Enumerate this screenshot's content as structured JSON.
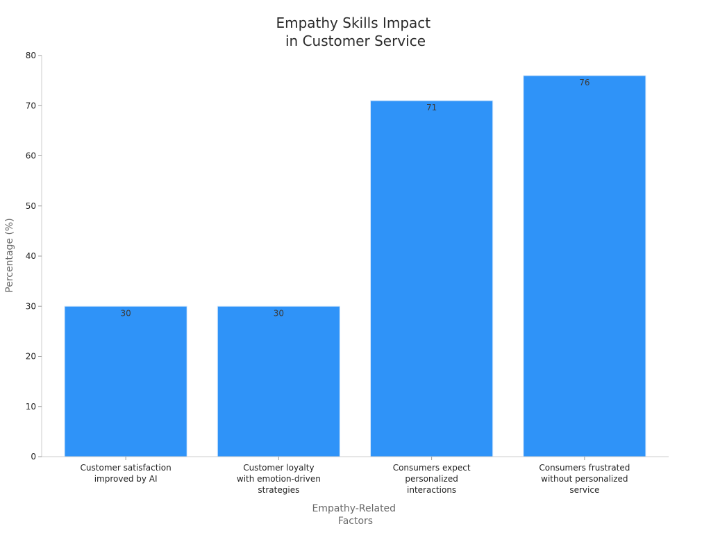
{
  "chart_data": {
    "type": "bar",
    "title": [
      "Empathy Skills Impact",
      "in Customer Service"
    ],
    "xlabel": [
      "Empathy-Related",
      "Factors"
    ],
    "ylabel": "Percentage (%)",
    "ylim": [
      0,
      80
    ],
    "yticks": [
      0,
      10,
      20,
      30,
      40,
      50,
      60,
      70,
      80
    ],
    "categories": [
      [
        "Customer satisfaction",
        "improved by AI"
      ],
      [
        "Customer loyalty",
        "with emotion-driven",
        "strategies"
      ],
      [
        "Consumers expect",
        "personalized",
        "interactions"
      ],
      [
        "Consumers frustrated",
        "without personalized",
        "service"
      ]
    ],
    "values": [
      30,
      30,
      71,
      76
    ],
    "data_labels": [
      "30",
      "30",
      "71",
      "76"
    ],
    "grid": false,
    "legend": "none",
    "bar_color": "#2f93f8",
    "bar_edge_color": "#d7e9fb"
  }
}
